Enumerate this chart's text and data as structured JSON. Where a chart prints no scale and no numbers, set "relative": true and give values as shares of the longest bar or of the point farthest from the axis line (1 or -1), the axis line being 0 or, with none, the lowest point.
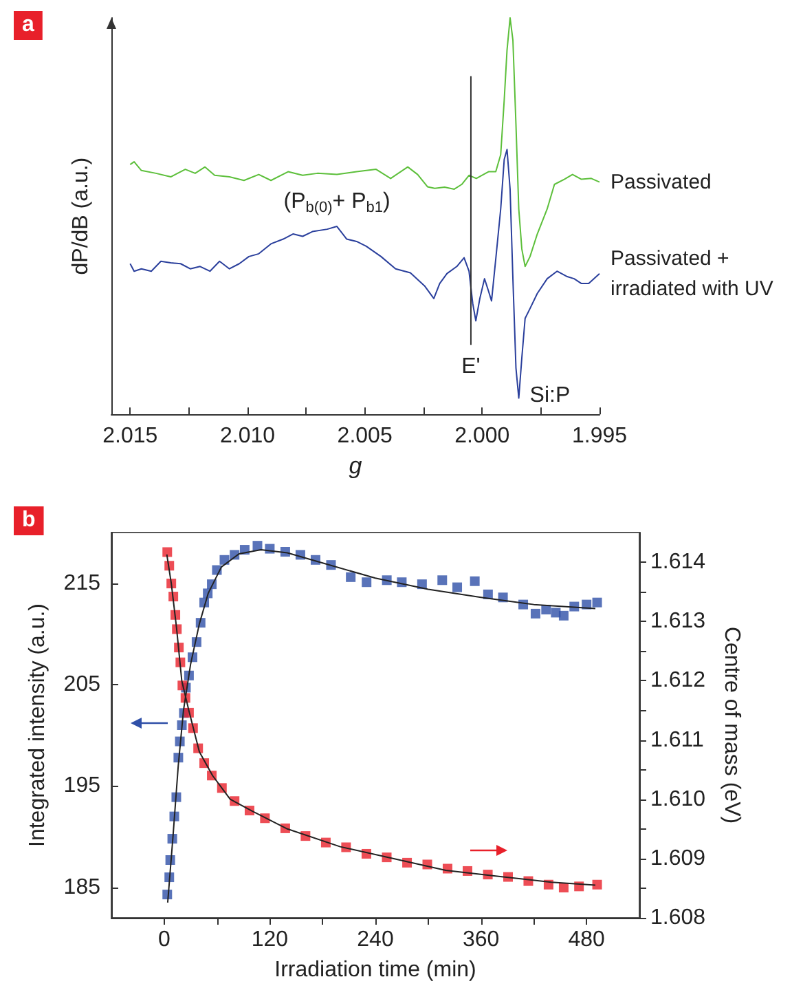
{
  "chart_data": [
    {
      "type": "line",
      "title": "a",
      "xlabel": "g",
      "ylabel": "dP/dB (a.u.)",
      "relative": true,
      "tick_labels": "x",
      "legend": false,
      "grid": false,
      "marker": "none",
      "xlim": [
        2.0158,
        1.995
      ],
      "xticks": [
        2.015,
        {
          "value": 2.0125,
          "label": null
        },
        {
          "value": 2.01,
          "label": "2.010"
        },
        {
          "value": 2.0075,
          "label": null
        },
        2.005,
        {
          "value": 2.0025,
          "label": null
        },
        {
          "value": 2,
          "label": "2.000"
        },
        {
          "value": 1.9975,
          "label": null
        },
        1.995
      ],
      "series": [
        {
          "name": "Passivated",
          "color": "#5cbf3a",
          "x": [
            2.015,
            2.01483,
            2.01452,
            2.0139,
            2.01327,
            2.01265,
            2.01223,
            2.01181,
            2.0114,
            2.01077,
            2.01015,
            2.00952,
            2.009,
            2.00827,
            2.00765,
            2.00702,
            2.00619,
            2.00535,
            2.00452,
            2.0039,
            2.00317,
            2.00275,
            2.00233,
            2.00202,
            2.0016,
            2.00119,
            2.00087,
            2.00056,
            2.00025,
            1.99973,
            1.99942,
            1.99921,
            1.99906,
            1.99894,
            1.99881,
            1.99869,
            1.99856,
            1.99844,
            1.99831,
            1.99817,
            1.99796,
            1.99765,
            1.99723,
            1.99692,
            1.9965,
            1.99615,
            1.99577,
            1.99535,
            1.995
          ],
          "values": [
            0.63,
            0.637,
            0.615,
            0.608,
            0.599,
            0.618,
            0.608,
            0.624,
            0.603,
            0.599,
            0.59,
            0.605,
            0.59,
            0.612,
            0.603,
            0.608,
            0.605,
            0.612,
            0.618,
            0.595,
            0.624,
            0.605,
            0.574,
            0.57,
            0.573,
            0.568,
            0.58,
            0.603,
            0.595,
            0.612,
            0.612,
            0.655,
            0.793,
            0.919,
            1,
            0.944,
            0.731,
            0.518,
            0.417,
            0.373,
            0.398,
            0.455,
            0.518,
            0.58,
            0.593,
            0.605,
            0.593,
            0.595,
            0.586
          ]
        },
        {
          "name": "Passivated + irradiated with UV",
          "color": "#2a3f9c",
          "x": [
            2.015,
            2.01483,
            2.01452,
            2.0141,
            2.01369,
            2.01327,
            2.01285,
            2.01244,
            2.01202,
            2.0116,
            2.01119,
            2.01077,
            2.01035,
            2.00994,
            2.00952,
            2.009,
            2.00848,
            2.00806,
            2.00765,
            2.00723,
            2.0066,
            2.00619,
            2.00577,
            2.00535,
            2.00494,
            2.00431,
            2.00369,
            2.00306,
            2.00244,
            2.00206,
            2.00181,
            2.0015,
            2.00108,
            2.00077,
            2.00056,
            2.0004,
            2.00027,
            2.0001,
            1.9999,
            1.99973,
            1.9996,
            1.99942,
            1.99921,
            1.99906,
            1.99894,
            1.99881,
            1.99869,
            1.99856,
            1.99844,
            1.99831,
            1.99817,
            1.99796,
            1.99765,
            1.99723,
            1.99681,
            1.9964,
            1.99608,
            1.99577,
            1.99546,
            1.995
          ],
          "values": [
            0.38,
            0.361,
            0.367,
            0.361,
            0.386,
            0.382,
            0.38,
            0.367,
            0.373,
            0.361,
            0.386,
            0.367,
            0.38,
            0.398,
            0.405,
            0.43,
            0.442,
            0.455,
            0.449,
            0.461,
            0.467,
            0.474,
            0.442,
            0.436,
            0.424,
            0.398,
            0.367,
            0.357,
            0.323,
            0.292,
            0.33,
            0.355,
            0.373,
            0.395,
            0.361,
            0.279,
            0.236,
            0.292,
            0.342,
            0.311,
            0.286,
            0.392,
            0.518,
            0.643,
            0.668,
            0.568,
            0.342,
            0.117,
            0.041,
            0.142,
            0.242,
            0.267,
            0.305,
            0.342,
            0.361,
            0.348,
            0.342,
            0.33,
            0.33,
            0.355
          ]
        },
        {
          "color": "#333333",
          "x": [
            2.00048,
            2.00048
          ],
          "values": [
            0.175,
            0.853
          ]
        }
      ],
      "annotations": [
        {
          "text": "(P$_{b(0)}$+ P$_{b1}$)",
          "x": 2.00619,
          "y": 0.474
        },
        {
          "text": "E'",
          "x": 2.00048,
          "y": 0.175
        },
        {
          "text": "Si:P",
          "x": 1.99844,
          "y": 0.041
        }
      ]
    },
    {
      "type": "scatter",
      "title": "b",
      "xlabel": "Irradiation time (min)",
      "ylabel": "Integrated intensity (a.u.)",
      "y2label": "Centre of mass (eV)",
      "legend": false,
      "grid": false,
      "marker": "square",
      "xlim": [
        -60,
        540
      ],
      "xticks": [
        0,
        {
          "value": 60,
          "label": null
        },
        120,
        {
          "value": 180,
          "label": null
        },
        240,
        {
          "value": 300,
          "label": null
        },
        360,
        {
          "value": 420,
          "label": null
        },
        480
      ],
      "ylim": [
        182,
        220
      ],
      "yticks": [
        185,
        195,
        205,
        215
      ],
      "y2lim": [
        1.608,
        1.6145
      ],
      "y2ticks": [
        1.608,
        {
          "value": 1.6085,
          "label": null
        },
        1.609,
        {
          "value": 1.6095,
          "label": null
        },
        {
          "value": 1.61,
          "label": "1.610"
        },
        {
          "value": 1.6105,
          "label": null
        },
        1.611,
        {
          "value": 1.6115,
          "label": null
        },
        1.612,
        {
          "value": 1.6125,
          "label": null
        },
        1.613,
        {
          "value": 1.6135,
          "label": null
        },
        1.614
      ],
      "series": [
        {
          "color": "#3050a8",
          "x": [
            3.5,
            5.8,
            6.9,
            9.2,
            11.5,
            13.8,
            16.1,
            17.8,
            20.1,
            22.4,
            24.7,
            28.2,
            32.2,
            36.8,
            41.4,
            45.5,
            49.5,
            54.1,
            59.9,
            68.5,
            80,
            91.5,
            106,
            120,
            137.6,
            154.8,
            172,
            189.6,
            212,
            230,
            253,
            270,
            293,
            316,
            333,
            353,
            368,
            385,
            408,
            422,
            434,
            445,
            454,
            466,
            480,
            492
          ],
          "values": [
            184.3,
            186.0,
            187.7,
            189.8,
            192.0,
            193.9,
            197.8,
            199.4,
            201.0,
            202.2,
            204.7,
            205.9,
            207.7,
            209.2,
            211.1,
            213.1,
            214.0,
            214.9,
            216.3,
            217.3,
            217.8,
            218.3,
            218.7,
            218.4,
            218.1,
            217.8,
            217.3,
            216.8,
            215.6,
            215.1,
            215.3,
            215.1,
            214.9,
            215.3,
            214.6,
            215.2,
            213.9,
            213.6,
            212.9,
            212.0,
            212.4,
            212.1,
            211.8,
            212.7,
            212.9,
            213.1
          ]
        },
        {
          "type": "line",
          "marker": "none",
          "color": "#222222",
          "x": [
            4,
            10,
            16,
            22,
            30,
            40,
            50,
            65,
            85,
            110,
            140,
            180,
            240,
            300,
            360,
            420,
            490
          ],
          "values": [
            183.5,
            190,
            197,
            202.5,
            207,
            211,
            214,
            216.6,
            217.9,
            218.3,
            218.0,
            217.0,
            215.5,
            214.4,
            213.6,
            212.9,
            212.5
          ]
        },
        {
          "axis": "y2",
          "color": "#e8202a",
          "x": [
            3.5,
            5.8,
            8.1,
            10.4,
            12.7,
            14.4,
            16.7,
            18.4,
            20.7,
            24.2,
            28.2,
            32.8,
            38.6,
            45.5,
            54.1,
            65.6,
            80,
            97,
            114.5,
            137.6,
            160.6,
            183.7,
            206.7,
            229.8,
            252.9,
            276,
            299,
            322,
            344.7,
            367.8,
            390.8,
            413.8,
            436.8,
            454,
            471.4,
            492
          ],
          "values": [
            1.61417,
            1.61394,
            1.61364,
            1.61342,
            1.61311,
            1.61287,
            1.61256,
            1.61231,
            1.61192,
            1.61171,
            1.61146,
            1.6112,
            1.61086,
            1.61061,
            1.6104,
            1.61019,
            1.60997,
            1.60981,
            1.60968,
            1.60951,
            1.60938,
            1.60927,
            1.60919,
            1.60908,
            1.60902,
            1.60893,
            1.6089,
            1.60883,
            1.60879,
            1.60873,
            1.60869,
            1.60862,
            1.60856,
            1.60851,
            1.60853,
            1.60856
          ]
        },
        {
          "axis": "y2",
          "type": "line",
          "marker": "none",
          "color": "#222222",
          "x": [
            3,
            8,
            14,
            20,
            28,
            40,
            55,
            75,
            100,
            140,
            200,
            260,
            320,
            380,
            440,
            490
          ],
          "values": [
            1.61413,
            1.61365,
            1.6129,
            1.612,
            1.6115,
            1.6108,
            1.6104,
            1.61,
            1.6098,
            1.6095,
            1.6092,
            1.609,
            1.6088,
            1.6087,
            1.6086,
            1.60855
          ]
        }
      ]
    }
  ]
}
